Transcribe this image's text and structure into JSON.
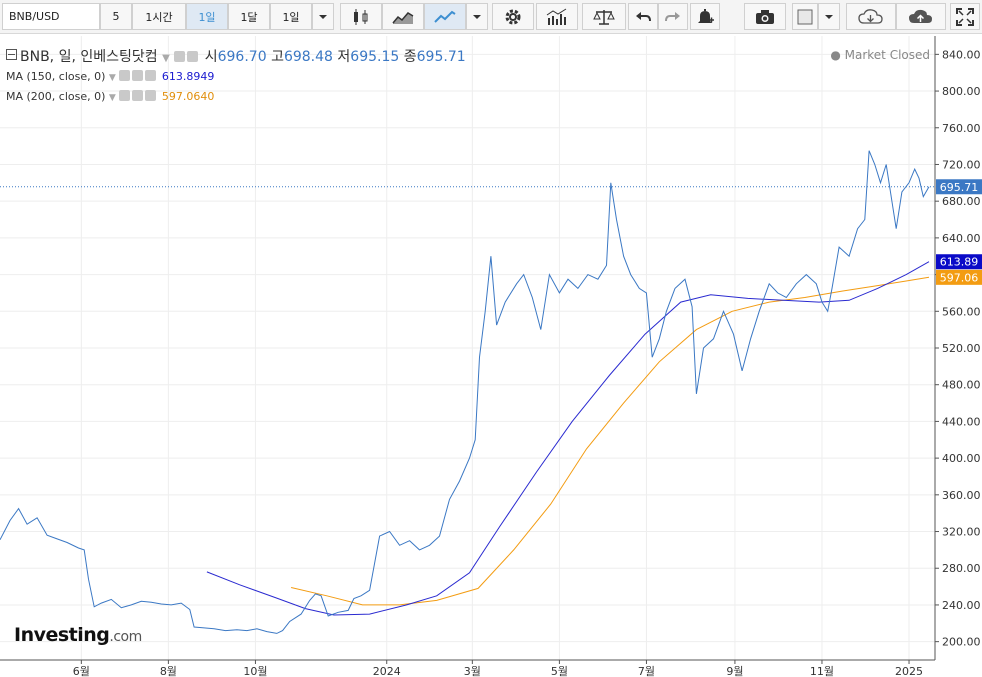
{
  "toolbar": {
    "symbol": "BNB/USD",
    "intervals": [
      "5",
      "1시간",
      "1일",
      "1달",
      "1일"
    ],
    "active_interval": "1일",
    "icons": [
      "chevron-down-icon",
      "candlestick-icon",
      "mountain-chart-icon",
      "line-chart-icon",
      "chevron-down-icon",
      "gear-icon",
      "indicators-icon",
      "scale-icon",
      "undo-icon",
      "redo-icon",
      "alert-bell-icon",
      "camera-icon",
      "color-square-icon",
      "chevron-down-icon",
      "cloud-download-icon",
      "cloud-upload-icon",
      "fullscreen-icon"
    ]
  },
  "legend": {
    "title": "BNB, 일, 인베스팅닷컴",
    "open_label": "시",
    "open": "696.70",
    "high_label": "고",
    "high": "698.48",
    "low_label": "저",
    "low": "695.15",
    "close_label": "종",
    "close": "695.71",
    "ma150_label": "MA (150, close, 0)",
    "ma150_value": "613.8949",
    "ma200_label": "MA (200, close, 0)",
    "ma200_value": "597.0640",
    "status": "● Market Closed"
  },
  "watermark": {
    "brand": "Investing",
    "suffix": ".com"
  },
  "colors": {
    "price": "#3b78c4",
    "ma150": "#2a2ad0",
    "ma200": "#f39c12",
    "last_tag": "#3b78c4"
  },
  "chart_data": {
    "type": "line",
    "ylim": [
      180,
      860
    ],
    "y_ticks": [
      200,
      240,
      280,
      320,
      360,
      400,
      440,
      480,
      520,
      560,
      600,
      640,
      680,
      720,
      760,
      800,
      840
    ],
    "y_tick_labels": [
      "200.00",
      "240.00",
      "280.00",
      "320.00",
      "360.00",
      "400.00",
      "440.00",
      "480.00",
      "520.00",
      "560.00",
      "600.00",
      "640.00",
      "680.00",
      "720.00",
      "760.00",
      "800.00",
      "840.00"
    ],
    "x_domain": [
      "2023-04-05",
      "2025-01-15"
    ],
    "x_ticks": [
      {
        "label": "6월",
        "date": "2023-06-01"
      },
      {
        "label": "8월",
        "date": "2023-08-01"
      },
      {
        "label": "10월",
        "date": "2023-10-01"
      },
      {
        "label": "2024",
        "date": "2024-01-01"
      },
      {
        "label": "3월",
        "date": "2024-03-01"
      },
      {
        "label": "5월",
        "date": "2024-05-01"
      },
      {
        "label": "7월",
        "date": "2024-07-01"
      },
      {
        "label": "9월",
        "date": "2024-09-01"
      },
      {
        "label": "11월",
        "date": "2024-11-01"
      },
      {
        "label": "2025",
        "date": "2025-01-01"
      }
    ],
    "last_price": 695.71,
    "last_price_label": "695.71",
    "ma150_last_label": "613.89",
    "ma200_last_label": "597.06",
    "series": [
      {
        "key": "price",
        "points": [
          [
            "2023-04-05",
            311
          ],
          [
            "2023-04-12",
            332
          ],
          [
            "2023-04-18",
            345
          ],
          [
            "2023-04-24",
            328
          ],
          [
            "2023-05-01",
            335
          ],
          [
            "2023-05-08",
            316
          ],
          [
            "2023-05-15",
            312
          ],
          [
            "2023-05-22",
            308
          ],
          [
            "2023-05-30",
            302
          ],
          [
            "2023-06-03",
            300
          ],
          [
            "2023-06-06",
            268
          ],
          [
            "2023-06-10",
            238
          ],
          [
            "2023-06-15",
            242
          ],
          [
            "2023-06-22",
            246
          ],
          [
            "2023-06-29",
            237
          ],
          [
            "2023-07-06",
            240
          ],
          [
            "2023-07-13",
            244
          ],
          [
            "2023-07-20",
            243
          ],
          [
            "2023-07-27",
            241
          ],
          [
            "2023-08-03",
            240
          ],
          [
            "2023-08-10",
            242
          ],
          [
            "2023-08-16",
            235
          ],
          [
            "2023-08-19",
            216
          ],
          [
            "2023-08-26",
            215
          ],
          [
            "2023-09-02",
            214
          ],
          [
            "2023-09-10",
            212
          ],
          [
            "2023-09-18",
            213
          ],
          [
            "2023-09-25",
            212
          ],
          [
            "2023-10-02",
            214
          ],
          [
            "2023-10-09",
            211
          ],
          [
            "2023-10-16",
            209
          ],
          [
            "2023-10-20",
            212
          ],
          [
            "2023-10-25",
            222
          ],
          [
            "2023-11-02",
            230
          ],
          [
            "2023-11-08",
            245
          ],
          [
            "2023-11-12",
            252
          ],
          [
            "2023-11-16",
            250
          ],
          [
            "2023-11-21",
            228
          ],
          [
            "2023-11-28",
            232
          ],
          [
            "2023-12-05",
            234
          ],
          [
            "2023-12-09",
            247
          ],
          [
            "2023-12-14",
            250
          ],
          [
            "2023-12-20",
            256
          ],
          [
            "2023-12-27",
            315
          ],
          [
            "2024-01-03",
            320
          ],
          [
            "2024-01-10",
            305
          ],
          [
            "2024-01-17",
            310
          ],
          [
            "2024-01-24",
            300
          ],
          [
            "2024-01-31",
            305
          ],
          [
            "2024-02-07",
            315
          ],
          [
            "2024-02-14",
            355
          ],
          [
            "2024-02-21",
            375
          ],
          [
            "2024-02-28",
            400
          ],
          [
            "2024-03-03",
            420
          ],
          [
            "2024-03-06",
            510
          ],
          [
            "2024-03-10",
            560
          ],
          [
            "2024-03-14",
            620
          ],
          [
            "2024-03-18",
            545
          ],
          [
            "2024-03-24",
            570
          ],
          [
            "2024-04-01",
            590
          ],
          [
            "2024-04-06",
            600
          ],
          [
            "2024-04-12",
            575
          ],
          [
            "2024-04-18",
            540
          ],
          [
            "2024-04-24",
            600
          ],
          [
            "2024-05-01",
            580
          ],
          [
            "2024-05-07",
            595
          ],
          [
            "2024-05-14",
            585
          ],
          [
            "2024-05-21",
            600
          ],
          [
            "2024-05-28",
            595
          ],
          [
            "2024-06-03",
            610
          ],
          [
            "2024-06-06",
            700
          ],
          [
            "2024-06-10",
            660
          ],
          [
            "2024-06-15",
            620
          ],
          [
            "2024-06-20",
            600
          ],
          [
            "2024-06-26",
            585
          ],
          [
            "2024-07-01",
            580
          ],
          [
            "2024-07-05",
            510
          ],
          [
            "2024-07-10",
            530
          ],
          [
            "2024-07-15",
            560
          ],
          [
            "2024-07-21",
            585
          ],
          [
            "2024-07-28",
            595
          ],
          [
            "2024-08-02",
            565
          ],
          [
            "2024-08-05",
            470
          ],
          [
            "2024-08-10",
            520
          ],
          [
            "2024-08-17",
            530
          ],
          [
            "2024-08-24",
            560
          ],
          [
            "2024-08-31",
            535
          ],
          [
            "2024-09-06",
            495
          ],
          [
            "2024-09-12",
            530
          ],
          [
            "2024-09-18",
            560
          ],
          [
            "2024-09-25",
            590
          ],
          [
            "2024-10-01",
            580
          ],
          [
            "2024-10-07",
            575
          ],
          [
            "2024-10-14",
            590
          ],
          [
            "2024-10-21",
            600
          ],
          [
            "2024-10-28",
            590
          ],
          [
            "2024-11-01",
            570
          ],
          [
            "2024-11-05",
            560
          ],
          [
            "2024-11-08",
            585
          ],
          [
            "2024-11-13",
            630
          ],
          [
            "2024-11-20",
            620
          ],
          [
            "2024-11-26",
            650
          ],
          [
            "2024-12-01",
            660
          ],
          [
            "2024-12-04",
            735
          ],
          [
            "2024-12-08",
            720
          ],
          [
            "2024-12-12",
            700
          ],
          [
            "2024-12-16",
            720
          ],
          [
            "2024-12-20",
            680
          ],
          [
            "2024-12-23",
            650
          ],
          [
            "2024-12-27",
            690
          ],
          [
            "2025-01-01",
            700
          ],
          [
            "2025-01-05",
            715
          ],
          [
            "2025-01-08",
            705
          ],
          [
            "2025-01-11",
            685
          ],
          [
            "2025-01-15",
            695.71
          ]
        ]
      },
      {
        "key": "ma150",
        "points": [
          [
            "2023-08-28",
            276
          ],
          [
            "2023-09-20",
            262
          ],
          [
            "2023-10-15",
            248
          ],
          [
            "2023-11-05",
            236
          ],
          [
            "2023-11-25",
            229
          ],
          [
            "2023-12-20",
            230
          ],
          [
            "2024-01-15",
            240
          ],
          [
            "2024-02-05",
            250
          ],
          [
            "2024-02-28",
            275
          ],
          [
            "2024-03-20",
            325
          ],
          [
            "2024-04-15",
            385
          ],
          [
            "2024-05-10",
            440
          ],
          [
            "2024-06-05",
            490
          ],
          [
            "2024-06-30",
            535
          ],
          [
            "2024-07-25",
            570
          ],
          [
            "2024-08-15",
            578
          ],
          [
            "2024-09-10",
            574
          ],
          [
            "2024-10-05",
            572
          ],
          [
            "2024-10-30",
            570
          ],
          [
            "2024-11-20",
            572
          ],
          [
            "2024-12-10",
            585
          ],
          [
            "2024-12-30",
            600
          ],
          [
            "2025-01-15",
            614
          ]
        ]
      },
      {
        "key": "ma200",
        "points": [
          [
            "2023-10-26",
            259
          ],
          [
            "2023-11-20",
            250
          ],
          [
            "2023-12-15",
            240
          ],
          [
            "2024-01-10",
            240
          ],
          [
            "2024-02-05",
            245
          ],
          [
            "2024-03-05",
            258
          ],
          [
            "2024-03-30",
            300
          ],
          [
            "2024-04-25",
            350
          ],
          [
            "2024-05-20",
            410
          ],
          [
            "2024-06-15",
            460
          ],
          [
            "2024-07-10",
            505
          ],
          [
            "2024-08-05",
            540
          ],
          [
            "2024-08-30",
            560
          ],
          [
            "2024-09-25",
            570
          ],
          [
            "2024-10-20",
            575
          ],
          [
            "2024-11-15",
            582
          ],
          [
            "2024-12-10",
            588
          ],
          [
            "2024-12-30",
            593
          ],
          [
            "2025-01-15",
            597
          ]
        ]
      }
    ]
  }
}
